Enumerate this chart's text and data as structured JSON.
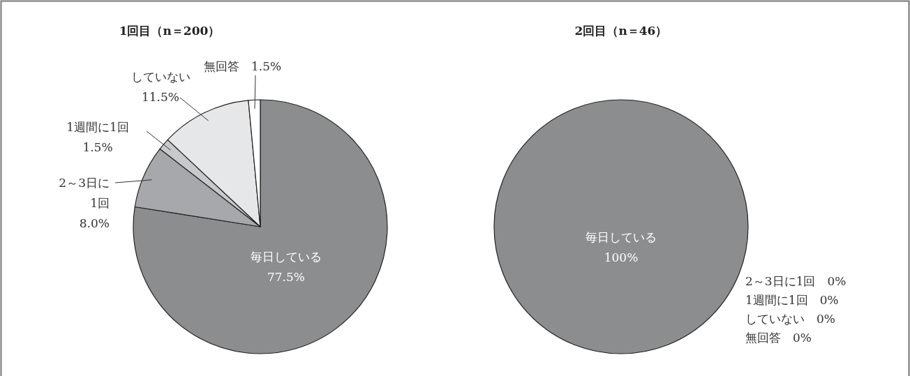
{
  "chart_data": [
    {
      "type": "pie",
      "title": "1回目（n＝200）",
      "categories": [
        "毎日している",
        "2～3日に1回",
        "1週間に1回",
        "していない",
        "無回答"
      ],
      "values": [
        77.5,
        8.0,
        1.5,
        11.5,
        1.5
      ],
      "value_labels": [
        "77.5%",
        "8.0%",
        "1.5%",
        "11.5%",
        "1.5%"
      ],
      "colors": [
        "#8c8d8f",
        "#a7a8ab",
        "#c8c9cb",
        "#e6e7e8",
        "#ffffff"
      ]
    },
    {
      "type": "pie",
      "title": "2回目（n＝46）",
      "categories": [
        "毎日している",
        "2～3日に1回",
        "1週間に1回",
        "していない",
        "無回答"
      ],
      "values": [
        100,
        0,
        0,
        0,
        0
      ],
      "value_labels": [
        "100%",
        "0%",
        "0%",
        "0%",
        "0%"
      ],
      "colors": [
        "#8c8d8f",
        "#a7a8ab",
        "#c8c9cb",
        "#e6e7e8",
        "#ffffff"
      ]
    }
  ]
}
